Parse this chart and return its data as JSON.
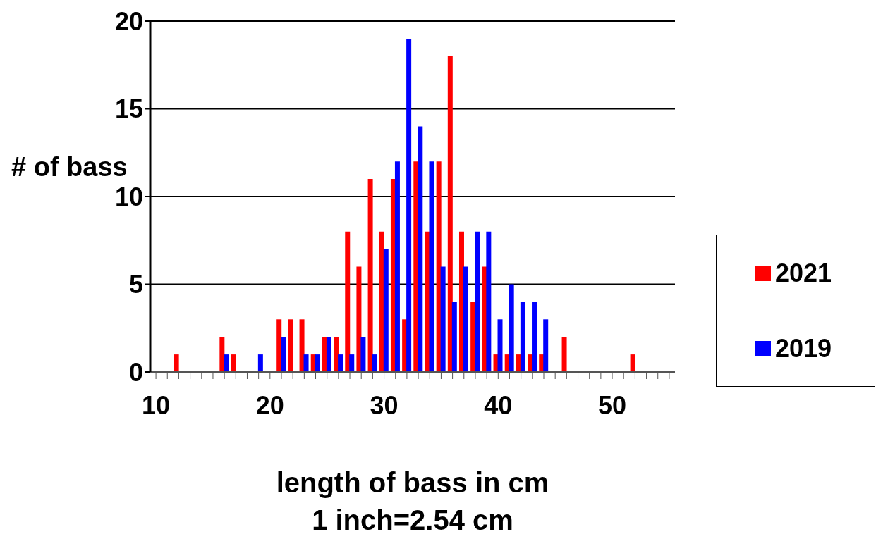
{
  "chart_data": {
    "type": "bar",
    "ylabel": "# of bass",
    "xlabel": "length of bass in cm",
    "annotations": [
      "1 inch=2.54 cm"
    ],
    "categories": [
      "10",
      null,
      null,
      null,
      null,
      null,
      null,
      null,
      null,
      null,
      "20",
      null,
      null,
      null,
      null,
      null,
      null,
      null,
      null,
      null,
      "30",
      null,
      null,
      null,
      null,
      null,
      null,
      null,
      null,
      null,
      "40",
      null,
      null,
      null,
      null,
      null,
      null,
      null,
      null,
      null,
      "50",
      null,
      null,
      null,
      null,
      null
    ],
    "series": [
      {
        "name": "2021",
        "color": "#ff0000",
        "values": [
          0,
          0,
          1,
          0,
          0,
          0,
          2,
          1,
          0,
          0,
          0,
          3,
          3,
          3,
          1,
          2,
          2,
          8,
          6,
          11,
          8,
          11,
          3,
          12,
          8,
          12,
          18,
          8,
          4,
          6,
          1,
          1,
          1,
          1,
          1,
          0,
          2,
          0,
          0,
          0,
          0,
          0,
          1,
          0,
          0,
          0
        ]
      },
      {
        "name": "2019",
        "color": "#0000ff",
        "values": [
          0,
          0,
          0,
          0,
          0,
          0,
          1,
          0,
          0,
          1,
          0,
          2,
          0,
          1,
          1,
          2,
          1,
          1,
          2,
          1,
          7,
          12,
          19,
          14,
          12,
          6,
          4,
          6,
          8,
          8,
          3,
          5,
          4,
          4,
          3,
          0,
          0,
          0,
          0,
          0,
          0,
          0,
          0,
          0,
          0,
          0
        ]
      }
    ],
    "ylim": [
      0,
      20
    ],
    "yticks": [
      0,
      5,
      10,
      15,
      20
    ],
    "grid": "y",
    "legend": "right"
  }
}
